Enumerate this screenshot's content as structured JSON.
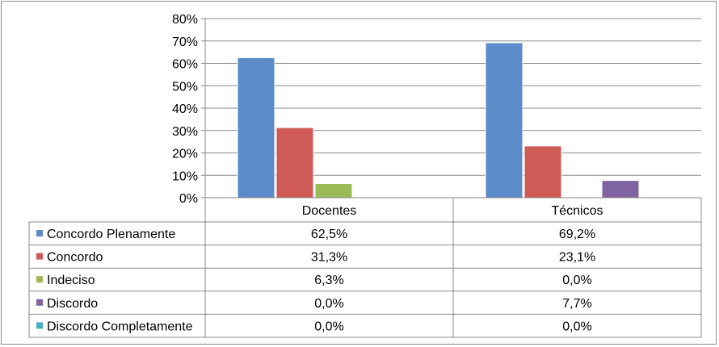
{
  "chart_data": {
    "type": "bar",
    "categories": [
      "Docentes",
      "Técnicos"
    ],
    "series": [
      {
        "name": "Concordo Plenamente",
        "color": "#5b8bc9",
        "values": [
          62.5,
          69.2
        ],
        "labels": [
          "62,5%",
          "69,2%"
        ]
      },
      {
        "name": "Concordo",
        "color": "#cf5b57",
        "values": [
          31.3,
          23.1
        ],
        "labels": [
          "31,3%",
          "23,1%"
        ]
      },
      {
        "name": "Indeciso",
        "color": "#9bbb59",
        "values": [
          6.3,
          0.0
        ],
        "labels": [
          "6,3%",
          "0,0%"
        ]
      },
      {
        "name": "Discordo",
        "color": "#8064a2",
        "values": [
          0.0,
          7.7
        ],
        "labels": [
          "0,0%",
          "7,7%"
        ]
      },
      {
        "name": "Discordo Completamente",
        "color": "#4bacc6",
        "values": [
          0.0,
          0.0
        ],
        "labels": [
          "0,0%",
          "0,0%"
        ]
      }
    ],
    "ylim": [
      0,
      80
    ],
    "yticks": [
      "0%",
      "10%",
      "20%",
      "30%",
      "40%",
      "50%",
      "60%",
      "70%",
      "80%"
    ],
    "grid": true,
    "legend": "data-table"
  }
}
